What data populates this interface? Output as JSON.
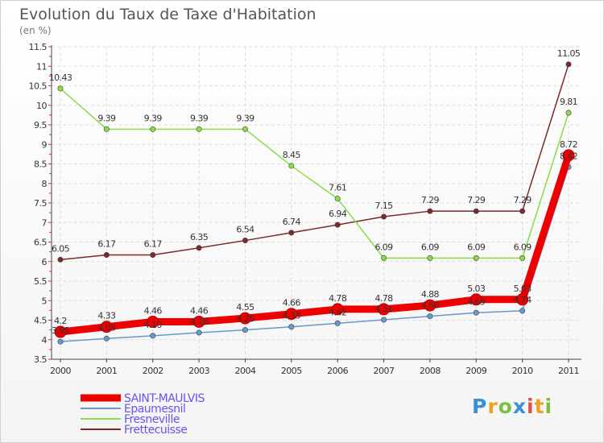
{
  "chart_data": {
    "type": "line",
    "title": "Evolution du Taux de Taxe d'Habitation",
    "subtitle": "(en %)",
    "categories": [
      "2000",
      "2001",
      "2002",
      "2003",
      "2004",
      "2005",
      "2006",
      "2007",
      "2008",
      "2009",
      "2010",
      "2011"
    ],
    "ylim": [
      3.5,
      11.5
    ],
    "yticks": [
      "3.5",
      "4",
      "4.5",
      "5",
      "5.5",
      "6",
      "6.5",
      "7",
      "7.5",
      "8",
      "8.5",
      "9",
      "9.5",
      "10",
      "10.5",
      "11",
      "11.5"
    ],
    "grid": true,
    "series": [
      {
        "name": "SAINT-MAULVIS",
        "color": "#ee0000",
        "values": [
          4.2,
          4.33,
          4.46,
          4.46,
          4.55,
          4.66,
          4.78,
          4.78,
          4.88,
          5.03,
          5.03,
          8.72
        ],
        "labels": [
          "4.2",
          "4.33",
          "4.46",
          "4.46",
          "4.55",
          "4.66",
          "4.78",
          "4.78",
          "4.88",
          "5.03",
          "5.03",
          "8.72"
        ]
      },
      {
        "name": "Epaumesnil",
        "color": "#6699cc",
        "values": [
          3.95,
          4.03,
          4.1,
          4.18,
          4.25,
          4.33,
          4.42,
          4.51,
          4.6,
          4.69,
          4.74,
          8.42
        ],
        "labels": [
          "3.95",
          "4.03",
          "4.10",
          "4.18",
          "4.25",
          "4.33",
          "4.42",
          "4.51",
          "4.60",
          "4.69",
          "4.74",
          "8.42"
        ]
      },
      {
        "name": "Fresneville",
        "color": "#88dd44",
        "values": [
          10.43,
          9.39,
          9.39,
          9.39,
          9.39,
          8.45,
          7.61,
          6.09,
          6.09,
          6.09,
          6.09,
          9.81
        ],
        "labels": [
          "10.43",
          "9.39",
          "9.39",
          "9.39",
          "9.39",
          "8.45",
          "7.61",
          "6.09",
          "6.09",
          "6.09",
          "6.09",
          "9.81"
        ]
      },
      {
        "name": "Frettecuisse",
        "color": "#7a2a2a",
        "values": [
          6.05,
          6.17,
          6.17,
          6.35,
          6.54,
          6.74,
          6.94,
          7.15,
          7.29,
          7.29,
          7.29,
          11.05
        ],
        "labels": [
          "6.05",
          "6.17",
          "6.17",
          "6.35",
          "6.54",
          "6.74",
          "6.94",
          "7.15",
          "7.29",
          "7.29",
          "7.29",
          "11.05"
        ]
      }
    ]
  },
  "logo": {
    "letters": [
      "P",
      "r",
      "o",
      "x",
      "i",
      "t",
      "i"
    ],
    "colors": [
      "#3a8fd8",
      "#f0a020",
      "#78c040",
      "#3a8fd8",
      "#e05050",
      "#f0a020",
      "#78c040"
    ]
  }
}
